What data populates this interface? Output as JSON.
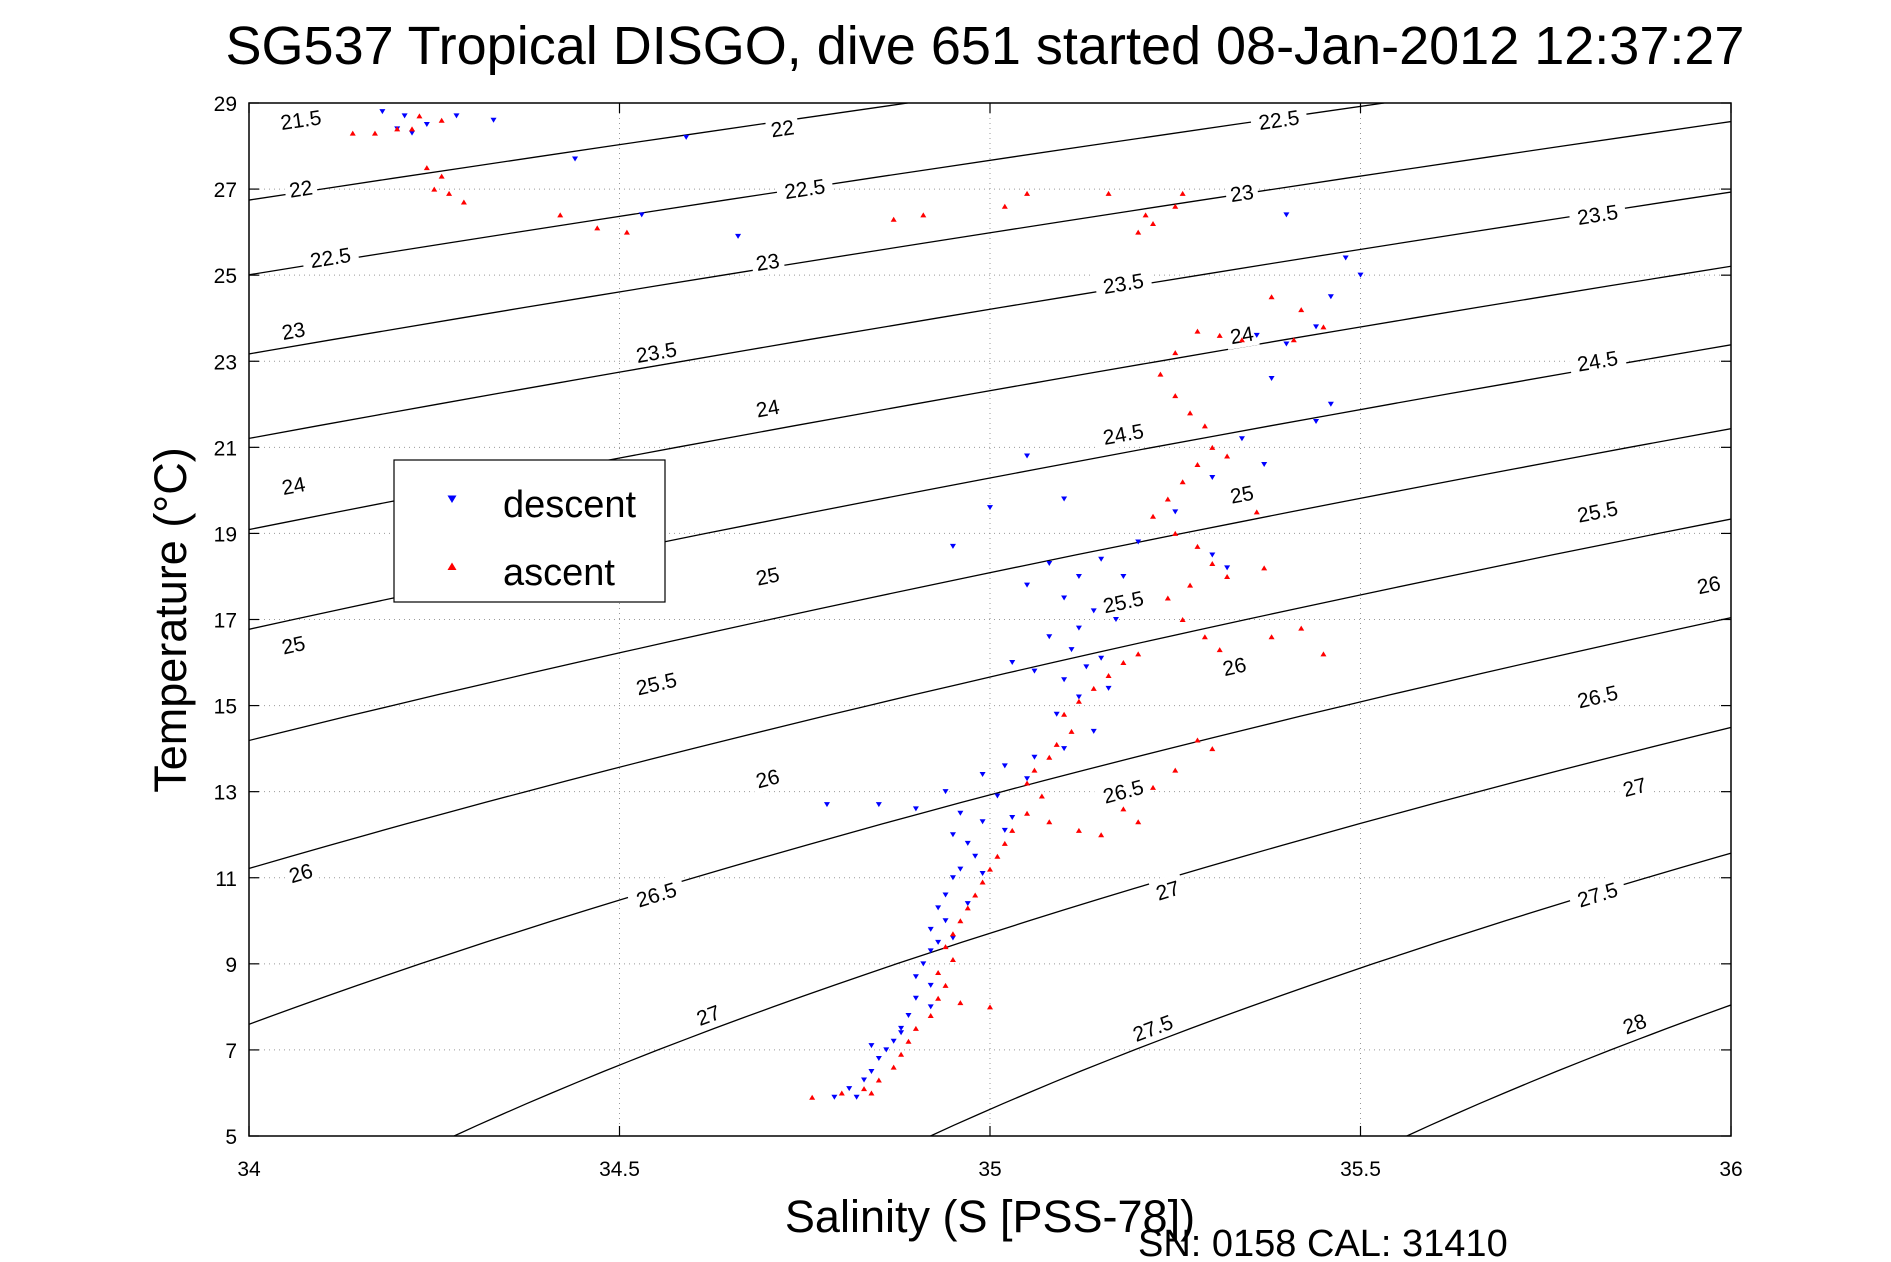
{
  "chart_data": {
    "type": "scatter",
    "title": "SG537 Tropical DISGO, dive 651 started 08-Jan-2012 12:37:27",
    "xlabel": "Salinity (S [PSS-78])",
    "ylabel": "Temperature (°C)",
    "xlim": [
      34,
      36
    ],
    "ylim": [
      5,
      29
    ],
    "xticks": [
      34,
      34.5,
      35,
      35.5,
      36
    ],
    "xtick_labels": [
      "34",
      "34.5",
      "35",
      "35.5",
      "36"
    ],
    "yticks": [
      5,
      7,
      9,
      11,
      13,
      15,
      17,
      19,
      21,
      23,
      25,
      27,
      29
    ],
    "ytick_labels": [
      "5",
      "7",
      "9",
      "11",
      "13",
      "15",
      "17",
      "19",
      "21",
      "23",
      "25",
      "27",
      "29"
    ],
    "grid": true,
    "legend_position": "upper-left",
    "footer": "SN: 0158  CAL: 31410",
    "density_contours": [
      {
        "label": "21.5",
        "sigma": 21.5,
        "label_at": [
          34.07,
          28.6
        ]
      },
      {
        "label": "22",
        "sigma": 22.0,
        "label_at": [
          34.07,
          27.0
        ]
      },
      {
        "label": "22",
        "sigma": 22.0,
        "label_at": [
          34.72,
          28.4
        ]
      },
      {
        "label": "22.5",
        "sigma": 22.5,
        "label_at": [
          34.11,
          25.4
        ]
      },
      {
        "label": "22.5",
        "sigma": 22.5,
        "label_at": [
          34.75,
          27.0
        ]
      },
      {
        "label": "22.5",
        "sigma": 22.5,
        "label_at": [
          35.39,
          28.6
        ]
      },
      {
        "label": "23",
        "sigma": 23.0,
        "label_at": [
          34.06,
          23.7
        ]
      },
      {
        "label": "23",
        "sigma": 23.0,
        "label_at": [
          34.7,
          25.3
        ]
      },
      {
        "label": "23",
        "sigma": 23.0,
        "label_at": [
          35.34,
          26.9
        ]
      },
      {
        "label": "23.5",
        "sigma": 23.5,
        "label_at": [
          34.55,
          23.2
        ]
      },
      {
        "label": "23.5",
        "sigma": 23.5,
        "label_at": [
          35.18,
          24.8
        ]
      },
      {
        "label": "23.5",
        "sigma": 23.5,
        "label_at": [
          35.82,
          26.4
        ]
      },
      {
        "label": "24",
        "sigma": 24.0,
        "label_at": [
          34.06,
          20.1
        ]
      },
      {
        "label": "24",
        "sigma": 24.0,
        "label_at": [
          34.7,
          21.9
        ]
      },
      {
        "label": "24",
        "sigma": 24.0,
        "label_at": [
          35.34,
          23.6
        ]
      },
      {
        "label": "24.5",
        "sigma": 24.5,
        "label_at": [
          35.18,
          21.3
        ]
      },
      {
        "label": "24.5",
        "sigma": 24.5,
        "label_at": [
          35.82,
          23.0
        ]
      },
      {
        "label": "25",
        "sigma": 25.0,
        "label_at": [
          34.06,
          16.4
        ]
      },
      {
        "label": "25",
        "sigma": 25.0,
        "label_at": [
          34.7,
          18.0
        ]
      },
      {
        "label": "25",
        "sigma": 25.0,
        "label_at": [
          35.34,
          19.9
        ]
      },
      {
        "label": "25.5",
        "sigma": 25.5,
        "label_at": [
          34.55,
          15.5
        ]
      },
      {
        "label": "25.5",
        "sigma": 25.5,
        "label_at": [
          35.18,
          17.4
        ]
      },
      {
        "label": "25.5",
        "sigma": 25.5,
        "label_at": [
          35.82,
          19.5
        ]
      },
      {
        "label": "26",
        "sigma": 26.0,
        "label_at": [
          34.07,
          11.1
        ]
      },
      {
        "label": "26",
        "sigma": 26.0,
        "label_at": [
          34.7,
          13.3
        ]
      },
      {
        "label": "26",
        "sigma": 26.0,
        "label_at": [
          35.33,
          15.9
        ]
      },
      {
        "label": "26",
        "sigma": 26.0,
        "label_at": [
          35.97,
          17.8
        ]
      },
      {
        "label": "26.5",
        "sigma": 26.5,
        "label_at": [
          34.55,
          10.6
        ]
      },
      {
        "label": "26.5",
        "sigma": 26.5,
        "label_at": [
          35.18,
          13.0
        ]
      },
      {
        "label": "26.5",
        "sigma": 26.5,
        "label_at": [
          35.82,
          15.2
        ]
      },
      {
        "label": "27",
        "sigma": 27.0,
        "label_at": [
          34.62,
          7.8
        ]
      },
      {
        "label": "27",
        "sigma": 27.0,
        "label_at": [
          35.24,
          10.7
        ]
      },
      {
        "label": "27",
        "sigma": 27.0,
        "label_at": [
          35.87,
          13.1
        ]
      },
      {
        "label": "27.5",
        "sigma": 27.5,
        "label_at": [
          35.22,
          7.5
        ]
      },
      {
        "label": "27.5",
        "sigma": 27.5,
        "label_at": [
          35.82,
          10.6
        ]
      },
      {
        "label": "28",
        "sigma": 28.0,
        "label_at": [
          35.87,
          7.6
        ]
      }
    ],
    "series": [
      {
        "name": "descent",
        "color": "#0000ff",
        "marker": "triangle-down",
        "points": [
          [
            34.18,
            28.8
          ],
          [
            34.21,
            28.7
          ],
          [
            34.24,
            28.5
          ],
          [
            34.28,
            28.7
          ],
          [
            34.33,
            28.6
          ],
          [
            34.22,
            28.3
          ],
          [
            34.2,
            28.4
          ],
          [
            34.44,
            27.7
          ],
          [
            34.59,
            28.2
          ],
          [
            34.53,
            26.4
          ],
          [
            34.66,
            25.9
          ],
          [
            35.4,
            26.4
          ],
          [
            35.48,
            25.4
          ],
          [
            35.5,
            25.0
          ],
          [
            35.46,
            24.5
          ],
          [
            35.44,
            23.8
          ],
          [
            35.36,
            23.6
          ],
          [
            35.4,
            23.4
          ],
          [
            35.46,
            22.0
          ],
          [
            35.44,
            21.6
          ],
          [
            35.38,
            22.6
          ],
          [
            35.34,
            21.2
          ],
          [
            35.37,
            20.6
          ],
          [
            35.05,
            20.8
          ],
          [
            35.0,
            19.6
          ],
          [
            35.1,
            19.8
          ],
          [
            35.3,
            20.3
          ],
          [
            35.25,
            19.5
          ],
          [
            35.2,
            18.8
          ],
          [
            34.95,
            18.7
          ],
          [
            35.08,
            18.3
          ],
          [
            35.12,
            18.0
          ],
          [
            35.15,
            18.4
          ],
          [
            35.18,
            18.0
          ],
          [
            35.3,
            18.5
          ],
          [
            35.32,
            18.2
          ],
          [
            35.05,
            17.8
          ],
          [
            35.1,
            17.5
          ],
          [
            35.14,
            17.2
          ],
          [
            35.17,
            17.0
          ],
          [
            35.12,
            16.8
          ],
          [
            35.08,
            16.6
          ],
          [
            35.11,
            16.3
          ],
          [
            35.15,
            16.1
          ],
          [
            35.13,
            15.9
          ],
          [
            35.1,
            15.6
          ],
          [
            35.16,
            15.4
          ],
          [
            35.06,
            15.8
          ],
          [
            35.03,
            16.0
          ],
          [
            35.12,
            15.2
          ],
          [
            35.09,
            14.8
          ],
          [
            35.14,
            14.4
          ],
          [
            35.1,
            14.0
          ],
          [
            35.06,
            13.8
          ],
          [
            35.05,
            13.3
          ],
          [
            35.02,
            13.6
          ],
          [
            34.99,
            13.4
          ],
          [
            34.94,
            13.0
          ],
          [
            35.01,
            12.9
          ],
          [
            34.78,
            12.7
          ],
          [
            34.85,
            12.7
          ],
          [
            34.9,
            12.6
          ],
          [
            34.96,
            12.5
          ],
          [
            34.99,
            12.3
          ],
          [
            35.03,
            12.4
          ],
          [
            34.95,
            12.0
          ],
          [
            34.97,
            11.8
          ],
          [
            34.98,
            11.5
          ],
          [
            34.96,
            11.2
          ],
          [
            34.95,
            11.0
          ],
          [
            34.94,
            10.6
          ],
          [
            34.93,
            10.3
          ],
          [
            34.94,
            10.0
          ],
          [
            34.92,
            9.8
          ],
          [
            34.93,
            9.5
          ],
          [
            34.92,
            9.3
          ],
          [
            34.91,
            9.0
          ],
          [
            34.9,
            8.7
          ],
          [
            34.92,
            8.5
          ],
          [
            34.9,
            8.2
          ],
          [
            34.92,
            8.0
          ],
          [
            34.89,
            7.8
          ],
          [
            34.88,
            7.5
          ],
          [
            34.87,
            7.2
          ],
          [
            34.86,
            7.0
          ],
          [
            34.85,
            6.8
          ],
          [
            34.84,
            6.5
          ],
          [
            34.83,
            6.3
          ],
          [
            34.81,
            6.1
          ],
          [
            34.79,
            5.9
          ],
          [
            34.82,
            5.9
          ],
          [
            34.88,
            7.4
          ],
          [
            34.84,
            7.1
          ],
          [
            34.95,
            9.6
          ],
          [
            34.97,
            10.4
          ],
          [
            34.99,
            11.1
          ],
          [
            35.02,
            12.1
          ]
        ]
      },
      {
        "name": "ascent",
        "color": "#ff0000",
        "marker": "triangle-up",
        "points": [
          [
            34.14,
            28.3
          ],
          [
            34.17,
            28.3
          ],
          [
            34.2,
            28.4
          ],
          [
            34.23,
            28.7
          ],
          [
            34.26,
            28.6
          ],
          [
            34.22,
            28.4
          ],
          [
            34.24,
            27.5
          ],
          [
            34.26,
            27.3
          ],
          [
            34.25,
            27.0
          ],
          [
            34.27,
            26.9
          ],
          [
            34.29,
            26.7
          ],
          [
            34.42,
            26.4
          ],
          [
            34.47,
            26.1
          ],
          [
            34.51,
            26.0
          ],
          [
            34.87,
            26.3
          ],
          [
            34.91,
            26.4
          ],
          [
            35.02,
            26.6
          ],
          [
            35.05,
            26.9
          ],
          [
            35.16,
            26.9
          ],
          [
            35.22,
            26.2
          ],
          [
            35.21,
            26.4
          ],
          [
            35.25,
            26.6
          ],
          [
            35.26,
            26.9
          ],
          [
            35.2,
            26.0
          ],
          [
            35.42,
            24.2
          ],
          [
            35.45,
            23.8
          ],
          [
            35.38,
            24.5
          ],
          [
            35.41,
            23.5
          ],
          [
            35.34,
            23.5
          ],
          [
            35.31,
            23.6
          ],
          [
            35.28,
            23.7
          ],
          [
            35.25,
            23.2
          ],
          [
            35.23,
            22.7
          ],
          [
            35.25,
            22.2
          ],
          [
            35.27,
            21.8
          ],
          [
            35.29,
            21.5
          ],
          [
            35.3,
            21.0
          ],
          [
            35.32,
            20.8
          ],
          [
            35.28,
            20.6
          ],
          [
            35.26,
            20.2
          ],
          [
            35.24,
            19.8
          ],
          [
            35.22,
            19.4
          ],
          [
            35.25,
            19.0
          ],
          [
            35.28,
            18.7
          ],
          [
            35.3,
            18.3
          ],
          [
            35.32,
            18.0
          ],
          [
            35.27,
            17.8
          ],
          [
            35.24,
            17.5
          ],
          [
            35.26,
            17.0
          ],
          [
            35.29,
            16.6
          ],
          [
            35.31,
            16.3
          ],
          [
            35.38,
            16.6
          ],
          [
            35.42,
            16.8
          ],
          [
            35.45,
            16.2
          ],
          [
            35.36,
            19.5
          ],
          [
            35.37,
            18.2
          ],
          [
            35.2,
            16.2
          ],
          [
            35.18,
            16.0
          ],
          [
            35.16,
            15.7
          ],
          [
            35.14,
            15.4
          ],
          [
            35.12,
            15.1
          ],
          [
            35.1,
            14.8
          ],
          [
            35.11,
            14.4
          ],
          [
            35.09,
            14.1
          ],
          [
            35.08,
            13.8
          ],
          [
            35.06,
            13.5
          ],
          [
            35.05,
            13.2
          ],
          [
            35.07,
            12.9
          ],
          [
            35.05,
            12.5
          ],
          [
            35.08,
            12.3
          ],
          [
            35.12,
            12.1
          ],
          [
            35.15,
            12.0
          ],
          [
            35.03,
            12.1
          ],
          [
            35.02,
            11.8
          ],
          [
            35.01,
            11.5
          ],
          [
            35.0,
            11.2
          ],
          [
            34.99,
            10.9
          ],
          [
            34.98,
            10.6
          ],
          [
            34.97,
            10.3
          ],
          [
            34.96,
            10.0
          ],
          [
            34.95,
            9.7
          ],
          [
            34.94,
            9.4
          ],
          [
            34.95,
            9.1
          ],
          [
            34.93,
            8.8
          ],
          [
            34.94,
            8.5
          ],
          [
            34.93,
            8.2
          ],
          [
            34.96,
            8.1
          ],
          [
            35.0,
            8.0
          ],
          [
            34.92,
            7.8
          ],
          [
            34.9,
            7.5
          ],
          [
            34.89,
            7.2
          ],
          [
            34.88,
            6.9
          ],
          [
            34.87,
            6.6
          ],
          [
            34.85,
            6.3
          ],
          [
            34.83,
            6.1
          ],
          [
            34.8,
            6.0
          ],
          [
            34.76,
            5.9
          ],
          [
            34.84,
            6.0
          ],
          [
            35.2,
            12.3
          ],
          [
            35.25,
            13.5
          ],
          [
            35.28,
            14.2
          ],
          [
            35.22,
            13.1
          ],
          [
            35.18,
            12.6
          ],
          [
            35.3,
            14.0
          ]
        ]
      }
    ]
  }
}
